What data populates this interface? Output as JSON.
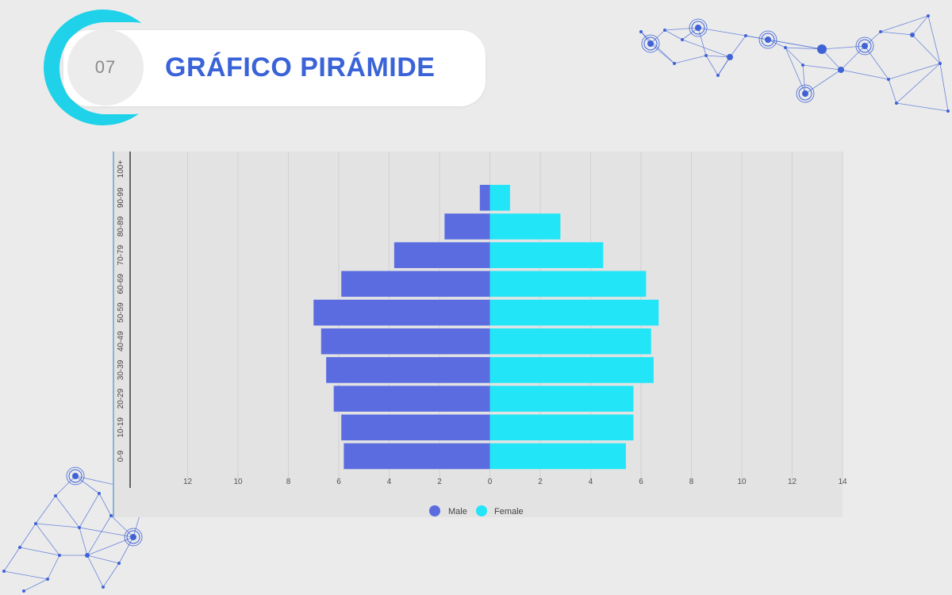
{
  "header": {
    "number": "07",
    "title": "GRÁFICO PIRÁMIDE"
  },
  "colors": {
    "accent": "#3a63d8",
    "ring": "#1fd2e9",
    "male": "#5b6ce1",
    "female": "#22e6f7",
    "network": "#3f63d6"
  },
  "chart_data": {
    "type": "bar",
    "orientation": "horizontal-pyramid",
    "categories": [
      "0-9",
      "10-19",
      "20-29",
      "30-39",
      "40-49",
      "50-59",
      "60-69",
      "70-79",
      "80-89",
      "90-99",
      "100+"
    ],
    "category_labels": [
      "0-9",
      "10-19",
      "20-29",
      "30-39",
      "40-49",
      "50-59",
      "60-69",
      "70-79",
      "80-89",
      "90-99",
      "100+"
    ],
    "series": [
      {
        "name": "Male",
        "color": "#5b6ce1",
        "values": [
          5.8,
          5.9,
          6.2,
          6.5,
          6.7,
          7.0,
          5.9,
          3.8,
          1.8,
          0.4,
          0
        ]
      },
      {
        "name": "Female",
        "color": "#22e6f7",
        "values": [
          5.4,
          5.7,
          5.7,
          6.5,
          6.4,
          6.7,
          6.2,
          4.5,
          2.8,
          0.8,
          0
        ]
      }
    ],
    "xlim": [
      -14,
      14
    ],
    "x_tick_labels": [
      "12",
      "10",
      "8",
      "6",
      "4",
      "2",
      "0",
      "2",
      "4",
      "6",
      "8",
      "10",
      "12",
      "14"
    ],
    "grid": true,
    "legend_position": "bottom"
  }
}
